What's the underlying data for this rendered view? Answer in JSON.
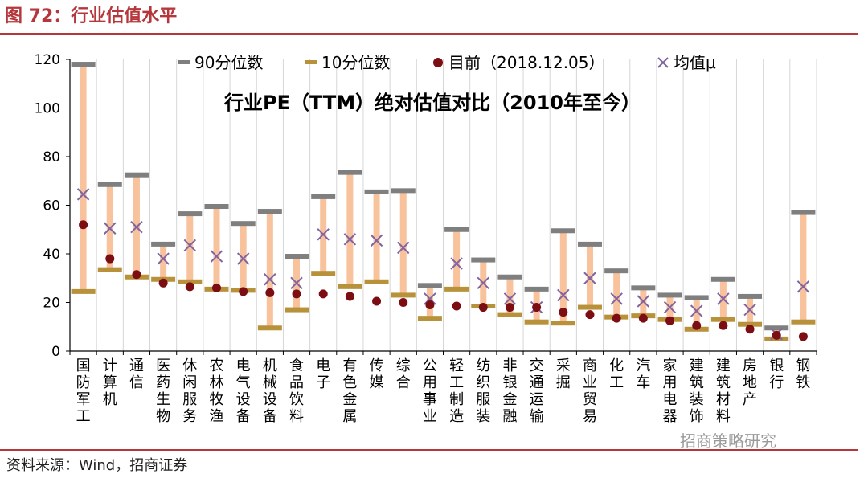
{
  "figure_title": "图 72：行业估值水平",
  "source_note": "资料来源：Wind，招商证券",
  "watermark": "招商策略研究",
  "colors": {
    "brand_red": "#b5373b",
    "range_bar": "#f7c29c",
    "p90": "#7f7f7f",
    "p10": "#b8923a",
    "current": "#7b0d13",
    "mean": "#8064a2"
  },
  "chart_data": {
    "type": "range-bar",
    "title": "行业PE（TTM）绝对估值对比（2010年至今）",
    "ylim": [
      0,
      120
    ],
    "yticks": [
      0,
      20,
      40,
      60,
      80,
      100,
      120
    ],
    "grid": true,
    "legend_position": "top",
    "legend": [
      "90分位数",
      "10分位数",
      "目前（2018.12.05）",
      "均值μ"
    ],
    "categories": [
      "国防军工",
      "计算机",
      "通信",
      "医药生物",
      "休闲服务",
      "农林牧渔",
      "电气设备",
      "机械设备",
      "食品饮料",
      "电子",
      "有色金属",
      "传媒",
      "综合",
      "公用事业",
      "轻工制造",
      "纺织服装",
      "非银金融",
      "交通运输",
      "采掘",
      "商业贸易",
      "化工",
      "汽车",
      "家用电器",
      "建筑装饰",
      "建筑材料",
      "房地产",
      "银行",
      "钢铁"
    ],
    "series": [
      {
        "name": "90分位数",
        "values": [
          118,
          68.5,
          72.5,
          44,
          56.5,
          59.5,
          52.5,
          57.5,
          39,
          63.5,
          73.5,
          65.5,
          66,
          27,
          50,
          37.5,
          30.5,
          25.5,
          49.5,
          44,
          33,
          26,
          23,
          22,
          29.5,
          22.5,
          9.5,
          57
        ]
      },
      {
        "name": "10分位数",
        "values": [
          24.5,
          33.5,
          30.5,
          29.5,
          28.5,
          25.5,
          25,
          9.5,
          17,
          32,
          26.5,
          28.5,
          23,
          13.5,
          25.5,
          18.5,
          15,
          12,
          11.5,
          18,
          14,
          14.5,
          13,
          9,
          13,
          11,
          5,
          12
        ]
      },
      {
        "name": "目前（2018.12.05）",
        "values": [
          52,
          38,
          31.5,
          28,
          26.5,
          26,
          24.5,
          24,
          23.5,
          23.5,
          22.5,
          20.5,
          20,
          19,
          18.5,
          18,
          18,
          18,
          16,
          15,
          13.5,
          13.5,
          12.5,
          10.5,
          10.5,
          9,
          6.5,
          6
        ]
      },
      {
        "name": "均值μ",
        "values": [
          64.5,
          50.5,
          51,
          38,
          43.5,
          39,
          38,
          29.5,
          28,
          48,
          46,
          45.5,
          42.5,
          21.5,
          36,
          28,
          21.5,
          18,
          23,
          30,
          21.5,
          20.5,
          18,
          16.5,
          21.5,
          17,
          7,
          26.5
        ]
      }
    ]
  }
}
